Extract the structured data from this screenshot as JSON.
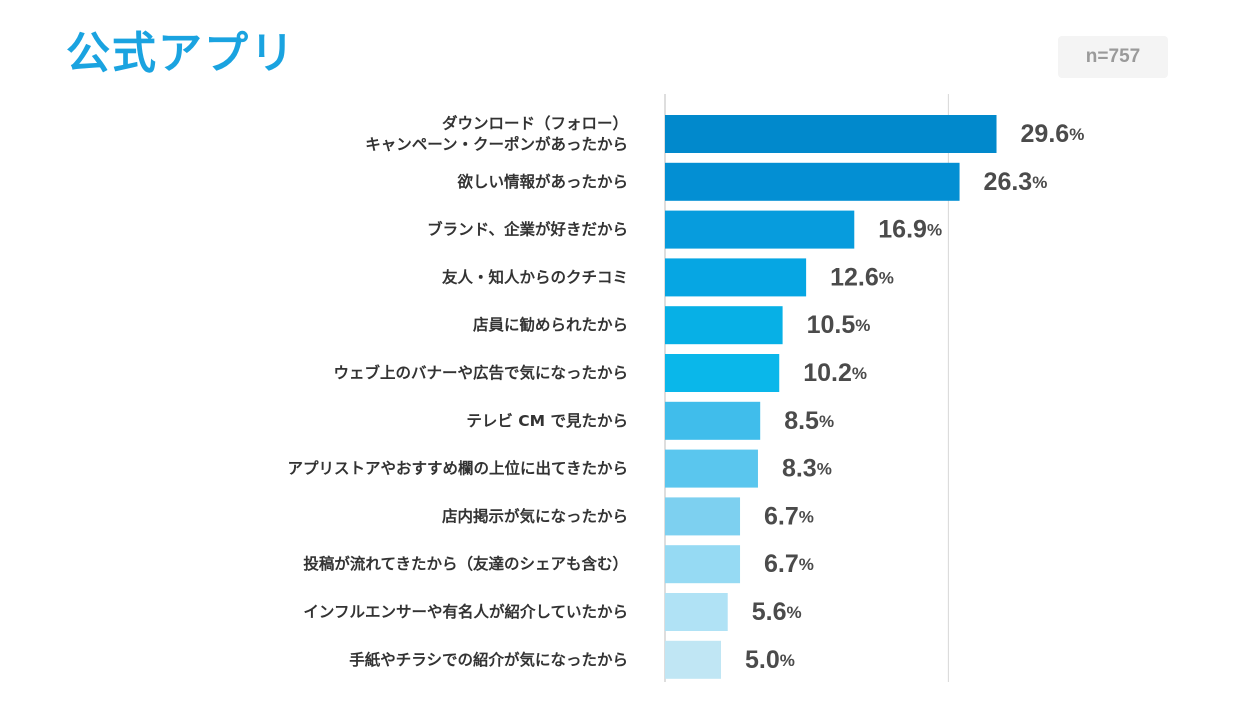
{
  "title": "公式アプリ",
  "sample": "n=757",
  "chart_data": {
    "type": "bar",
    "orientation": "horizontal",
    "title": "公式アプリ",
    "unit": "%",
    "xlim": [
      0,
      30
    ],
    "categories": [
      [
        "ダウンロード（フォロー）",
        "キャンペーン・クーポンがあったから"
      ],
      [
        "欲しい情報があったから"
      ],
      [
        "ブランド、企業が好きだから"
      ],
      [
        "友人・知人からのクチコミ"
      ],
      [
        "店員に勧められたから"
      ],
      [
        "ウェブ上のバナーや広告で気になったから"
      ],
      [
        "テレビ CM で見たから"
      ],
      [
        "アプリストアやおすすめ欄の上位に出てきたから"
      ],
      [
        "店内掲示が気になったから"
      ],
      [
        "投稿が流れてきたから（友達のシェアも含む）"
      ],
      [
        "インフルエンサーや有名人が紹介していたから"
      ],
      [
        "手紙やチラシでの紹介が気になったから"
      ]
    ],
    "values": [
      29.6,
      26.3,
      16.9,
      12.6,
      10.5,
      10.2,
      8.5,
      8.3,
      6.7,
      6.7,
      5.6,
      5.0
    ],
    "value_labels": [
      "29.6",
      "26.3",
      "16.9",
      "12.6",
      "10.5",
      "10.2",
      "8.5",
      "8.3",
      "6.7",
      "6.7",
      "5.6",
      "5.0"
    ],
    "colors": [
      "#0189cc",
      "#038fd3",
      "#079cdd",
      "#06a6e3",
      "#07b0e6",
      "#0ab7ea",
      "#40bdeb",
      "#5ac6ee",
      "#7dd0f0",
      "#96daf3",
      "#b0e2f5",
      "#c0e6f4"
    ],
    "grid": "single vertical reference line"
  }
}
